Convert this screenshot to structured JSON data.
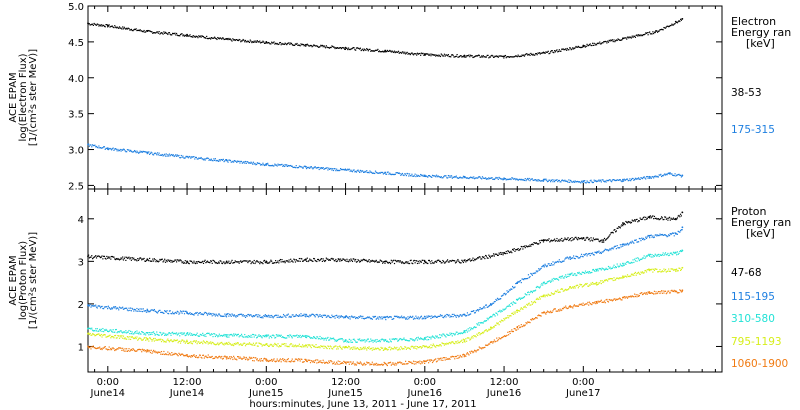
{
  "chart_data": [
    {
      "type": "scatter",
      "panel": "top",
      "ylabel": [
        "ACE EPAM",
        "log(Electron Flux)",
        "[1/(cm²s ster MeV)]"
      ],
      "ylim": [
        2.45,
        5.0
      ],
      "yticks": [
        2.5,
        3.0,
        3.5,
        4.0,
        4.5,
        5.0
      ],
      "ytick_labels": [
        "2.5",
        "3.0",
        "3.5",
        "4.0",
        "4.5",
        "5.0"
      ],
      "xlim": [
        -3,
        93
      ],
      "legend": {
        "title": [
          "Electron",
          "Energy ran",
          "[keV]"
        ],
        "placement": "right"
      },
      "series": [
        {
          "name": "38-53",
          "color": "#000000",
          "points": [
            [
              -3,
              4.76
            ],
            [
              0,
              4.73
            ],
            [
              6,
              4.65
            ],
            [
              12,
              4.6
            ],
            [
              18,
              4.54
            ],
            [
              24,
              4.5
            ],
            [
              30,
              4.46
            ],
            [
              36,
              4.42
            ],
            [
              42,
              4.38
            ],
            [
              48,
              4.33
            ],
            [
              54,
              4.31
            ],
            [
              60,
              4.3
            ],
            [
              66,
              4.35
            ],
            [
              72,
              4.45
            ],
            [
              78,
              4.55
            ],
            [
              83,
              4.65
            ],
            [
              86,
              4.78
            ],
            [
              87,
              4.82
            ]
          ]
        },
        {
          "name": "175-315",
          "color": "#1e7fe0",
          "points": [
            [
              -3,
              3.07
            ],
            [
              0,
              3.02
            ],
            [
              6,
              2.96
            ],
            [
              12,
              2.9
            ],
            [
              18,
              2.85
            ],
            [
              24,
              2.8
            ],
            [
              30,
              2.76
            ],
            [
              36,
              2.72
            ],
            [
              42,
              2.68
            ],
            [
              48,
              2.64
            ],
            [
              54,
              2.62
            ],
            [
              60,
              2.6
            ],
            [
              66,
              2.58
            ],
            [
              72,
              2.56
            ],
            [
              78,
              2.58
            ],
            [
              82,
              2.62
            ],
            [
              85,
              2.67
            ],
            [
              87,
              2.64
            ]
          ]
        }
      ]
    },
    {
      "type": "scatter",
      "panel": "bottom",
      "ylabel": [
        "ACE EPAM",
        "log(Proton Flux)",
        "[1/(cm²s ster MeV)]"
      ],
      "ylim": [
        0.4,
        4.7
      ],
      "yticks": [
        1,
        2,
        3,
        4
      ],
      "ytick_labels": [
        "1",
        "2",
        "3",
        "4"
      ],
      "xlim": [
        -3,
        93
      ],
      "xticks": [
        0,
        12,
        24,
        36,
        48,
        60,
        72,
        84,
        96
      ],
      "xtick_labels": [
        [
          "0:00",
          "June14"
        ],
        [
          "12:00",
          "June14"
        ],
        [
          "0:00",
          "June15"
        ],
        [
          "12:00",
          "June15"
        ],
        [
          "0:00",
          "June16"
        ],
        [
          "12:00",
          "June16"
        ],
        [
          "0:00",
          "June17"
        ]
      ],
      "xtick_positions": [
        0,
        12,
        24,
        36,
        48,
        60,
        72
      ],
      "xlabel": "hours:minutes, June 13, 2011 - June 17, 2011",
      "legend": {
        "title": [
          "Proton",
          "Energy ran",
          "[keV]"
        ],
        "placement": "right"
      },
      "series": [
        {
          "name": "47-68",
          "color": "#000000",
          "points": [
            [
              -3,
              3.12
            ],
            [
              6,
              3.05
            ],
            [
              12,
              3.0
            ],
            [
              18,
              3.0
            ],
            [
              24,
              3.0
            ],
            [
              30,
              3.05
            ],
            [
              35,
              3.05
            ],
            [
              42,
              3.0
            ],
            [
              48,
              3.0
            ],
            [
              54,
              3.02
            ],
            [
              60,
              3.2
            ],
            [
              66,
              3.5
            ],
            [
              72,
              3.55
            ],
            [
              75,
              3.5
            ],
            [
              78,
              3.9
            ],
            [
              82,
              4.05
            ],
            [
              86,
              4.0
            ],
            [
              87,
              4.15
            ]
          ]
        },
        {
          "name": "115-195",
          "color": "#1e7fe0",
          "points": [
            [
              -3,
              1.97
            ],
            [
              6,
              1.85
            ],
            [
              12,
              1.8
            ],
            [
              18,
              1.75
            ],
            [
              24,
              1.72
            ],
            [
              30,
              1.75
            ],
            [
              36,
              1.7
            ],
            [
              42,
              1.68
            ],
            [
              48,
              1.7
            ],
            [
              54,
              1.75
            ],
            [
              58,
              2.0
            ],
            [
              62,
              2.5
            ],
            [
              66,
              2.9
            ],
            [
              70,
              3.1
            ],
            [
              74,
              3.2
            ],
            [
              78,
              3.4
            ],
            [
              82,
              3.6
            ],
            [
              86,
              3.65
            ],
            [
              87,
              3.8
            ]
          ]
        },
        {
          "name": "310-580",
          "color": "#22e2d6",
          "points": [
            [
              -3,
              1.42
            ],
            [
              6,
              1.32
            ],
            [
              12,
              1.3
            ],
            [
              18,
              1.27
            ],
            [
              24,
              1.25
            ],
            [
              30,
              1.25
            ],
            [
              36,
              1.15
            ],
            [
              42,
              1.15
            ],
            [
              48,
              1.2
            ],
            [
              54,
              1.35
            ],
            [
              58,
              1.7
            ],
            [
              62,
              2.1
            ],
            [
              66,
              2.5
            ],
            [
              70,
              2.7
            ],
            [
              74,
              2.8
            ],
            [
              78,
              2.95
            ],
            [
              82,
              3.15
            ],
            [
              86,
              3.2
            ],
            [
              87,
              3.25
            ]
          ]
        },
        {
          "name": "795-1193",
          "color": "#d6ee1a",
          "points": [
            [
              -3,
              1.3
            ],
            [
              6,
              1.18
            ],
            [
              12,
              1.12
            ],
            [
              18,
              1.08
            ],
            [
              24,
              1.05
            ],
            [
              30,
              1.03
            ],
            [
              36,
              0.98
            ],
            [
              42,
              0.96
            ],
            [
              48,
              1.0
            ],
            [
              54,
              1.15
            ],
            [
              58,
              1.45
            ],
            [
              62,
              1.85
            ],
            [
              66,
              2.2
            ],
            [
              70,
              2.4
            ],
            [
              74,
              2.5
            ],
            [
              78,
              2.65
            ],
            [
              82,
              2.8
            ],
            [
              86,
              2.8
            ],
            [
              87,
              2.85
            ]
          ]
        },
        {
          "name": "1060-1900",
          "color": "#f07a12",
          "points": [
            [
              -3,
              1.0
            ],
            [
              6,
              0.9
            ],
            [
              12,
              0.8
            ],
            [
              18,
              0.75
            ],
            [
              24,
              0.7
            ],
            [
              30,
              0.68
            ],
            [
              36,
              0.62
            ],
            [
              42,
              0.6
            ],
            [
              48,
              0.65
            ],
            [
              54,
              0.8
            ],
            [
              58,
              1.1
            ],
            [
              62,
              1.45
            ],
            [
              66,
              1.8
            ],
            [
              70,
              1.95
            ],
            [
              74,
              2.05
            ],
            [
              78,
              2.15
            ],
            [
              82,
              2.28
            ],
            [
              86,
              2.3
            ],
            [
              87,
              2.32
            ]
          ]
        }
      ]
    }
  ]
}
